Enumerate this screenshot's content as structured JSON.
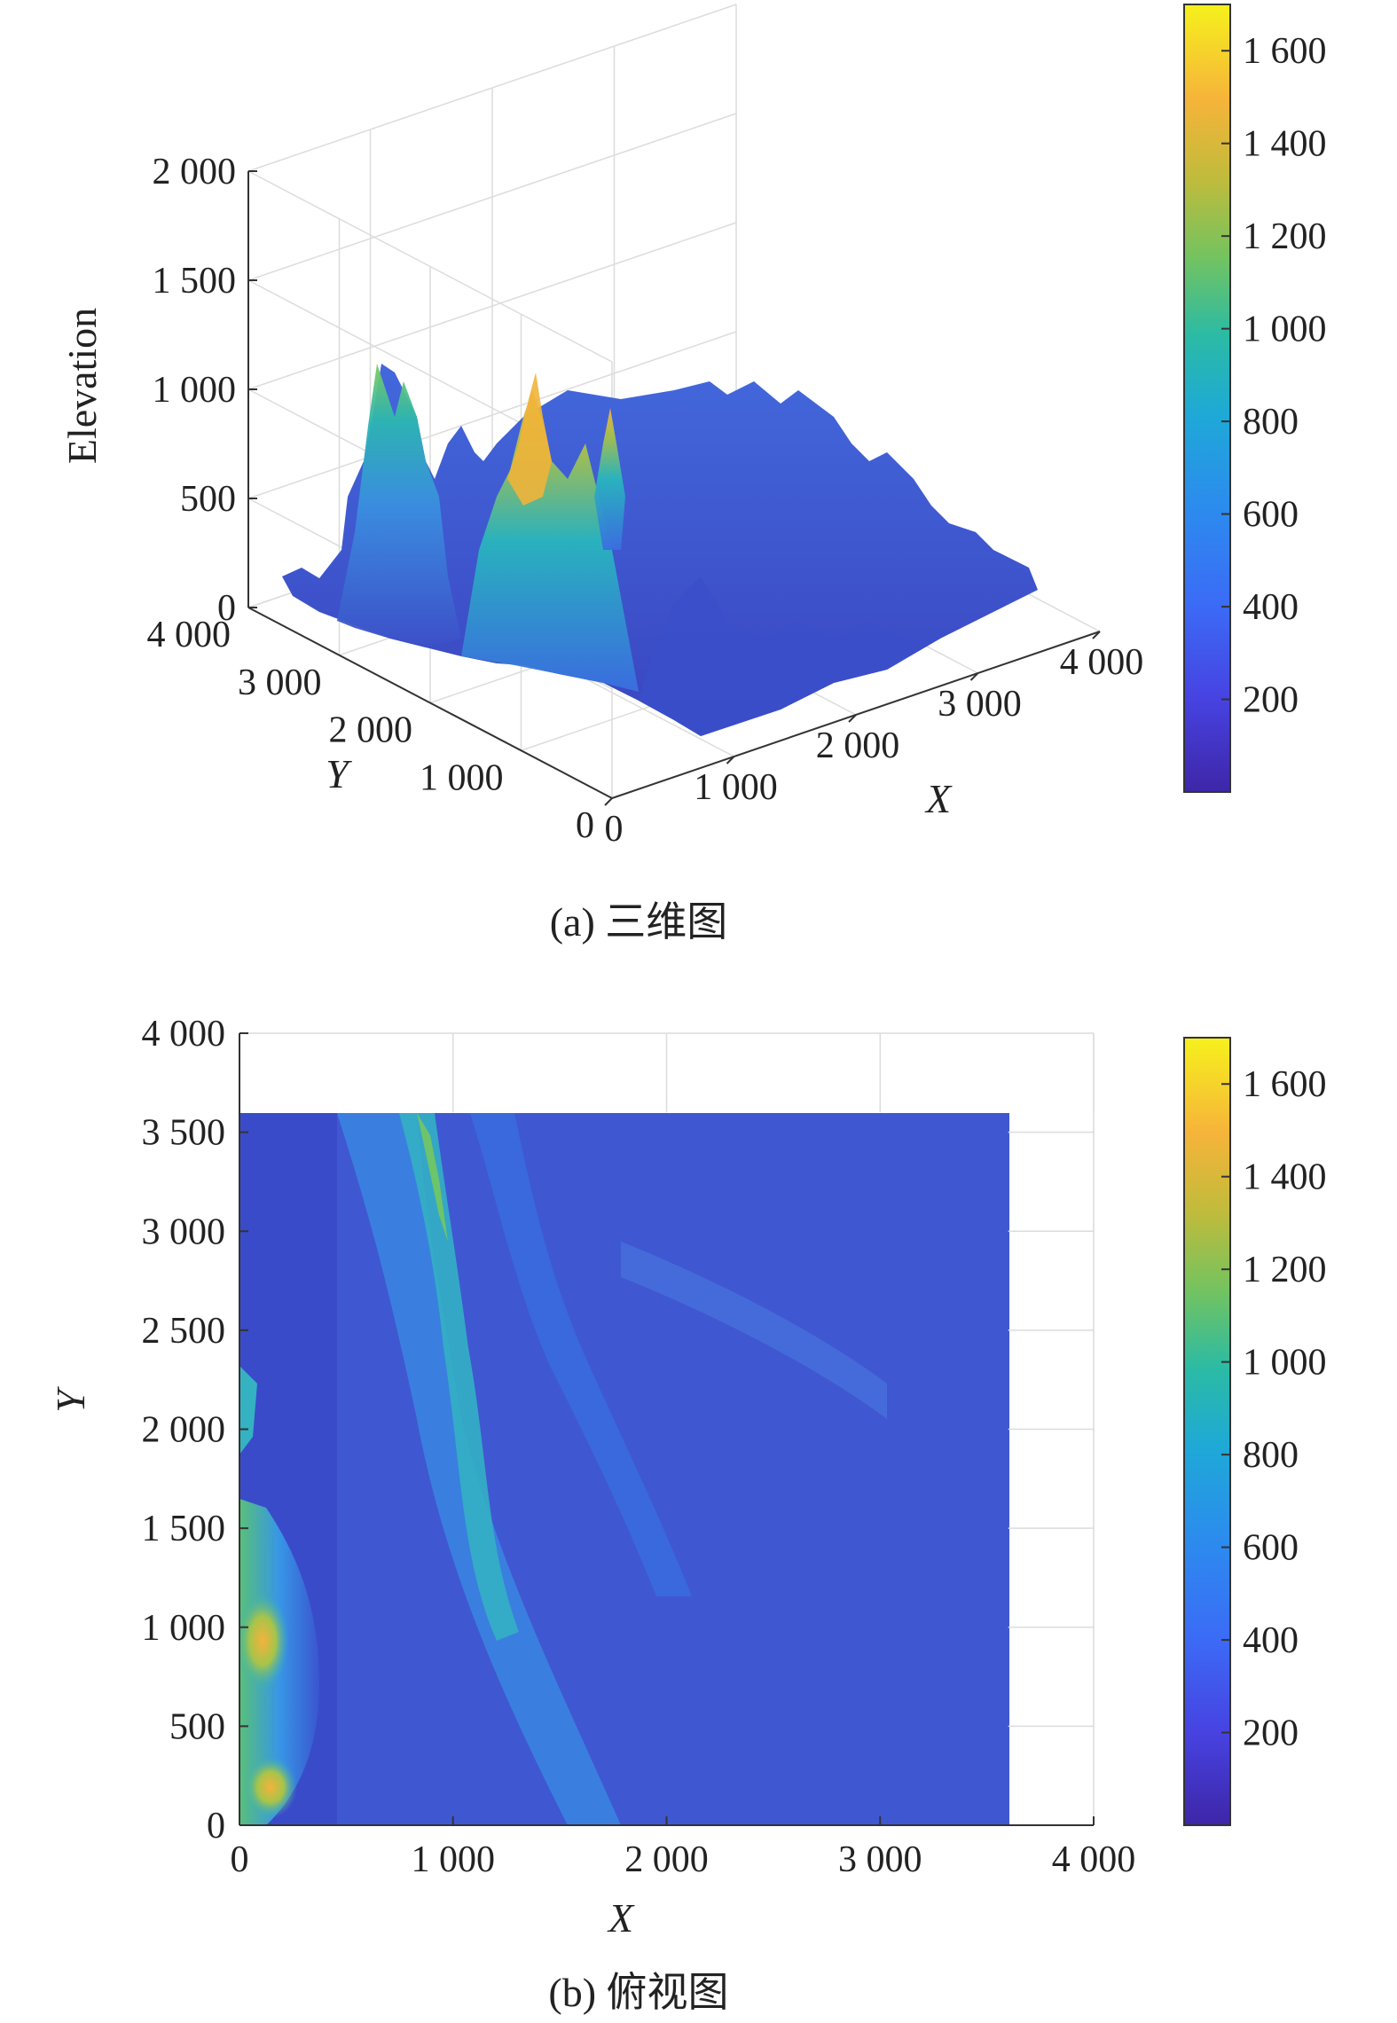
{
  "chart_data": [
    {
      "type": "surface",
      "subtitle": "(a) 三维图",
      "xlabel": "X",
      "ylabel": "Y",
      "zlabel": "Elevation",
      "xlim": [
        0,
        4000
      ],
      "ylim": [
        0,
        4000
      ],
      "zlim": [
        0,
        2000
      ],
      "xticks": [
        "0",
        "1 000",
        "2 000",
        "3 000",
        "4 000"
      ],
      "yticks": [
        "0",
        "1 000",
        "2 000",
        "3 000",
        "4 000"
      ],
      "zticks": [
        "0",
        "500",
        "1 000",
        "1 500",
        "2 000"
      ],
      "grid": true,
      "colormap": "parula",
      "colorbar": {
        "range": [
          0,
          1700
        ],
        "ticks": [
          "200",
          "400",
          "600",
          "800",
          "1 000",
          "1 200",
          "1 400",
          "1 600"
        ],
        "tick_values": [
          200,
          400,
          600,
          800,
          1000,
          1200,
          1400,
          1600
        ]
      }
    },
    {
      "type": "heatmap",
      "subtitle": "(b) 俯视图",
      "xlabel": "X",
      "ylabel": "Y",
      "xlim": [
        0,
        4000
      ],
      "ylim": [
        0,
        4000
      ],
      "data_extent": {
        "x": [
          0,
          3600
        ],
        "y": [
          0,
          3600
        ]
      },
      "xticks": [
        "0",
        "1 000",
        "2 000",
        "3 000",
        "4 000"
      ],
      "yticks": [
        "0",
        "500",
        "1 000",
        "1 500",
        "2 000",
        "2 500",
        "3 000",
        "3 500",
        "4 000"
      ],
      "grid": true,
      "colormap": "parula",
      "colorbar": {
        "range": [
          0,
          1700
        ],
        "ticks": [
          "200",
          "400",
          "600",
          "800",
          "1 000",
          "1 200",
          "1 400",
          "1 600"
        ],
        "tick_values": [
          200,
          400,
          600,
          800,
          1000,
          1200,
          1400,
          1600
        ]
      }
    }
  ]
}
